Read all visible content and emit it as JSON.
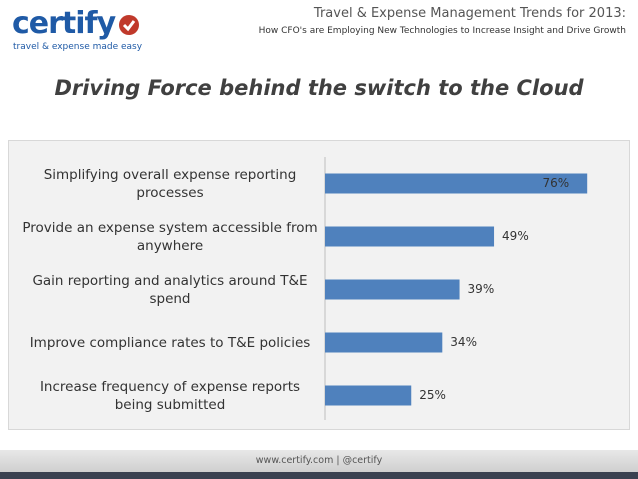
{
  "logo": {
    "name": "certify",
    "tagline": "travel & expense made easy"
  },
  "header": {
    "title": "Travel & Expense Management Trends for 2013:",
    "subtitle": "How CFO's are Employing New Technologies to Increase Insight and Drive Growth"
  },
  "footer": {
    "text": "www.certify.com   |   @certify"
  },
  "chart_data": {
    "type": "hbar",
    "title": "Driving Force behind the switch to the Cloud",
    "categories": [
      "Simplifying overall expense reporting processes",
      "Provide an expense system accessible from anywhere",
      "Gain reporting and analytics around T&E spend",
      "Improve compliance rates to T&E policies",
      "Increase frequency of expense reports being submitted"
    ],
    "values": [
      76,
      49,
      39,
      34,
      25
    ],
    "value_labels": [
      "76%",
      "49%",
      "39%",
      "34%",
      "25%"
    ],
    "color": "#4f81bd",
    "xlim": [
      0,
      80
    ]
  }
}
